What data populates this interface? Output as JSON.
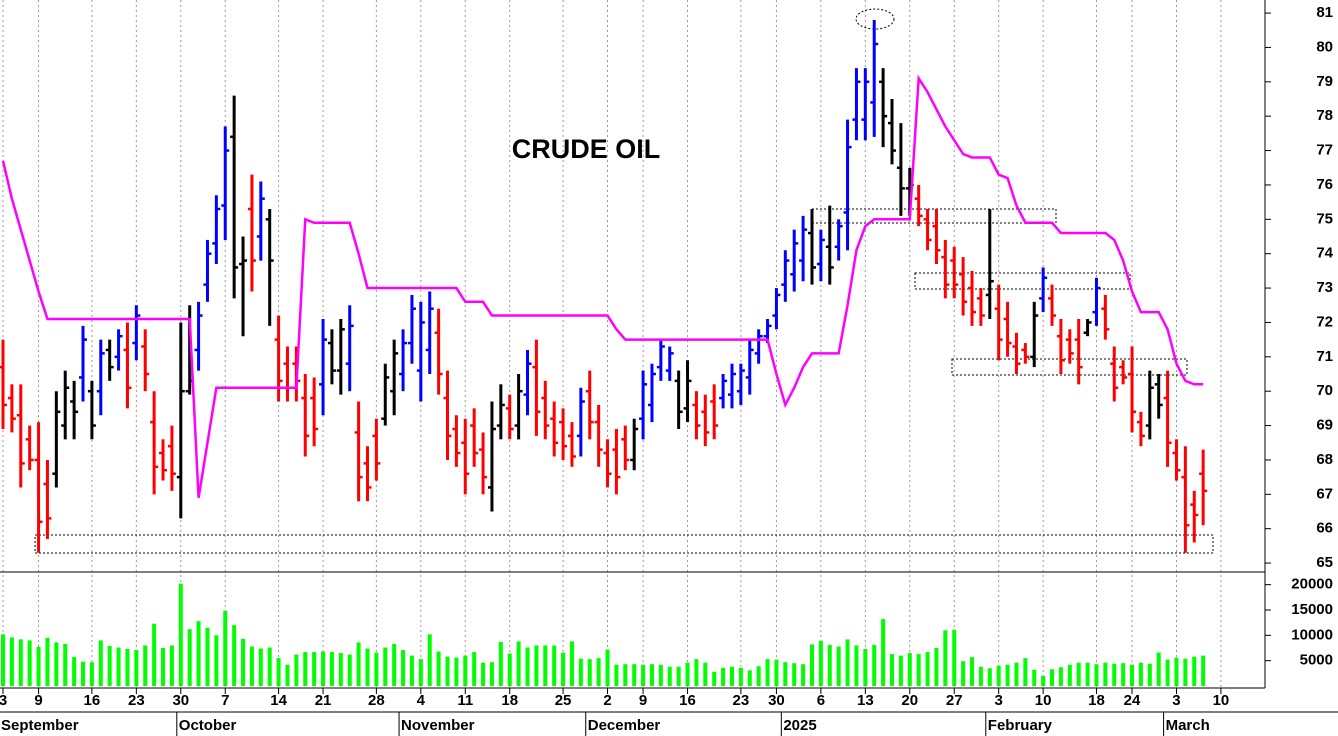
{
  "chart_data": {
    "type": "ohlc",
    "annotation": "CRUDE OIL",
    "categories": [
      "3",
      null,
      null,
      null,
      "9",
      null,
      null,
      null,
      null,
      null,
      "16",
      null,
      null,
      null,
      null,
      "23",
      null,
      null,
      null,
      null,
      "30",
      null,
      null,
      null,
      null,
      "7",
      null,
      null,
      null,
      null,
      null,
      "14",
      null,
      null,
      null,
      null,
      "21",
      null,
      null,
      null,
      null,
      null,
      "28",
      null,
      null,
      null,
      null,
      "4",
      null,
      null,
      null,
      null,
      "11",
      null,
      null,
      null,
      null,
      "18",
      null,
      null,
      null,
      null,
      null,
      "25",
      null,
      null,
      null,
      null,
      "2",
      null,
      null,
      null,
      "9",
      null,
      null,
      null,
      null,
      "16",
      null,
      null,
      null,
      null,
      null,
      "23",
      null,
      null,
      null,
      "30",
      null,
      null,
      null,
      null,
      "6",
      null,
      null,
      null,
      null,
      "13",
      null,
      null,
      null,
      null,
      "20",
      null,
      null,
      null,
      null,
      "27",
      null,
      null,
      null,
      null,
      "3",
      null,
      null,
      null,
      null,
      "10",
      null,
      null,
      null,
      null,
      null,
      "18",
      null,
      null,
      null,
      "24",
      null,
      null,
      null,
      null,
      "3",
      null,
      null,
      null,
      null,
      "10"
    ],
    "month_labels": [
      "September",
      null,
      null,
      null,
      null,
      null,
      null,
      null,
      null,
      null,
      null,
      null,
      null,
      null,
      null,
      null,
      null,
      null,
      null,
      null,
      "October",
      null,
      null,
      null,
      null,
      null,
      null,
      null,
      null,
      null,
      null,
      null,
      null,
      null,
      null,
      null,
      null,
      null,
      null,
      null,
      null,
      null,
      null,
      null,
      null,
      "November",
      null,
      null,
      null,
      null,
      null,
      null,
      null,
      null,
      null,
      null,
      null,
      null,
      null,
      null,
      null,
      null,
      null,
      null,
      null,
      null,
      "December",
      null,
      null,
      null,
      null,
      null,
      null,
      null,
      null,
      null,
      null,
      null,
      null,
      null,
      null,
      null,
      null,
      null,
      null,
      null,
      null,
      null,
      "2025",
      null,
      null,
      null,
      null,
      null,
      null,
      null,
      null,
      null,
      null,
      null,
      null,
      null,
      null,
      null,
      null,
      null,
      null,
      null,
      null,
      null,
      null,
      "February",
      null,
      null,
      null,
      null,
      null,
      null,
      null,
      null,
      null,
      null,
      null,
      null,
      null,
      null,
      null,
      null,
      null,
      null,
      null,
      "March",
      null,
      null,
      null,
      null,
      null,
      null
    ],
    "open": [
      70.7,
      69.8,
      69.3,
      68.6,
      68.0,
      67.3,
      67.6,
      69.0,
      69.7,
      70.4,
      70.0,
      70.0,
      71.2,
      71.0,
      71.2,
      71.4,
      71.3,
      69.1,
      68.2,
      68.4,
      67.5,
      70.0,
      71.2,
      73.1,
      74.3,
      75.4,
      77.4,
      73.7,
      75.3,
      74.5,
      75.0,
      71.5,
      70.8,
      70.8,
      69.8,
      69.8,
      70.2,
      71.4,
      70.6,
      70.8,
      68.8,
      67.9,
      68.7,
      69.2,
      70.0,
      70.5,
      71.4,
      70.6,
      71.2,
      71.7,
      69.8,
      68.9,
      68.5,
      69.0,
      68.3,
      67.2,
      69.0,
      69.5,
      69.0,
      69.9,
      70.7,
      69.8,
      69.2,
      69.1,
      68.7,
      68.7,
      70.0,
      69.1,
      68.2,
      68.3,
      68.6,
      68.0,
      69.2,
      69.6,
      70.7,
      70.6,
      70.3,
      69.5,
      69.6,
      69.4,
      69.7,
      69.8,
      69.9,
      70.0,
      70.4,
      71.1,
      71.6,
      72.2,
      73.1,
      73.4,
      73.8,
      74.6,
      73.7,
      74.2,
      74.2,
      75.2,
      77.9,
      77.9,
      78.4,
      79.0,
      77.8,
      76.5,
      75.9,
      75.6,
      75.0,
      74.8,
      73.9,
      73.8,
      73.4,
      73.0,
      72.7,
      72.8,
      72.4,
      72.1,
      71.3,
      71.2,
      71.0,
      72.7,
      72.7,
      71.6,
      71.5,
      71.5,
      71.7,
      72.3,
      72.4,
      70.8,
      70.7,
      70.5,
      69.1,
      69.0,
      70.2,
      69.8,
      68.2,
      67.5,
      66.7,
      67.6,
      null,
      null
    ],
    "high": [
      71.5,
      70.2,
      70.2,
      69.0,
      69.1,
      68.0,
      70.0,
      70.6,
      70.3,
      71.9,
      70.3,
      71.5,
      71.5,
      71.8,
      72.0,
      72.5,
      71.8,
      70.0,
      68.6,
      69.0,
      72.0,
      72.5,
      72.6,
      74.4,
      75.7,
      77.7,
      78.6,
      74.5,
      76.3,
      76.1,
      75.3,
      72.2,
      71.3,
      71.3,
      70.5,
      70.4,
      72.1,
      71.8,
      72.1,
      72.5,
      69.7,
      68.4,
      69.2,
      70.8,
      71.5,
      71.8,
      72.8,
      72.6,
      72.9,
      72.4,
      70.6,
      69.3,
      69.2,
      69.5,
      68.8,
      69.7,
      70.2,
      69.9,
      70.5,
      71.2,
      71.5,
      70.3,
      69.7,
      69.5,
      69.1,
      70.1,
      70.6,
      69.6,
      68.6,
      68.9,
      69.0,
      69.2,
      70.6,
      70.8,
      71.5,
      71.3,
      70.6,
      70.9,
      70.0,
      69.9,
      70.2,
      70.5,
      70.8,
      70.8,
      71.5,
      71.8,
      72.1,
      73.0,
      74.1,
      74.7,
      75.1,
      75.3,
      74.7,
      75.4,
      75.0,
      77.9,
      79.4,
      79.4,
      80.8,
      79.4,
      78.5,
      77.8,
      76.5,
      76.0,
      75.3,
      75.3,
      74.4,
      74.2,
      73.9,
      73.5,
      73.0,
      75.3,
      73.1,
      72.6,
      71.7,
      71.4,
      72.6,
      73.6,
      73.1,
      72.1,
      71.8,
      72.1,
      72.1,
      73.3,
      72.8,
      71.3,
      70.9,
      71.3,
      69.4,
      70.6,
      70.5,
      70.6,
      68.6,
      68.4,
      67.1,
      68.3,
      null,
      null
    ],
    "low": [
      68.9,
      68.8,
      67.2,
      67.7,
      65.3,
      65.7,
      67.2,
      68.6,
      68.6,
      69.7,
      68.6,
      69.3,
      70.3,
      70.6,
      69.5,
      70.9,
      70.0,
      67.0,
      67.4,
      67.1,
      66.3,
      69.9,
      70.6,
      72.6,
      73.7,
      74.4,
      72.7,
      71.6,
      72.9,
      73.8,
      71.9,
      69.7,
      69.7,
      69.7,
      68.1,
      68.4,
      69.3,
      70.2,
      69.9,
      70.0,
      66.8,
      66.8,
      67.4,
      69.0,
      69.3,
      70.0,
      70.8,
      69.7,
      70.5,
      69.9,
      68.0,
      67.8,
      67.0,
      67.8,
      67.0,
      66.5,
      68.6,
      68.6,
      68.6,
      69.3,
      68.7,
      68.6,
      68.1,
      68.0,
      67.8,
      68.1,
      68.6,
      67.8,
      67.2,
      67.0,
      67.7,
      67.7,
      68.6,
      69.1,
      70.3,
      70.3,
      68.9,
      69.1,
      68.6,
      68.4,
      68.6,
      69.5,
      69.5,
      69.6,
      69.9,
      70.8,
      71.4,
      71.8,
      72.6,
      72.9,
      73.2,
      73.1,
      73.2,
      73.1,
      73.8,
      74.1,
      77.3,
      77.3,
      77.4,
      77.1,
      76.6,
      75.1,
      75.1,
      74.8,
      74.1,
      73.7,
      72.7,
      72.7,
      72.2,
      71.9,
      71.9,
      72.1,
      70.9,
      71.0,
      70.5,
      70.8,
      70.7,
      72.3,
      71.9,
      70.5,
      70.8,
      70.2,
      71.6,
      71.9,
      71.5,
      69.7,
      70.2,
      68.8,
      68.4,
      68.6,
      69.2,
      67.8,
      67.4,
      65.3,
      65.6,
      66.1,
      null,
      null
    ],
    "close": [
      69.6,
      69.2,
      67.9,
      68.0,
      66.2,
      66.3,
      69.4,
      70.1,
      69.4,
      71.5,
      69.0,
      71.1,
      70.7,
      71.6,
      70.1,
      72.2,
      70.5,
      67.8,
      67.7,
      67.6,
      70.0,
      70.3,
      72.2,
      74.0,
      75.3,
      77.0,
      73.6,
      73.8,
      73.8,
      75.6,
      73.8,
      70.3,
      70.1,
      70.3,
      68.7,
      68.9,
      71.5,
      70.6,
      71.8,
      71.9,
      67.5,
      67.2,
      67.9,
      70.4,
      71.1,
      71.4,
      72.4,
      72.0,
      72.4,
      70.5,
      68.7,
      68.2,
      67.6,
      68.2,
      67.5,
      68.9,
      69.6,
      68.9,
      70.0,
      70.8,
      69.4,
      69.0,
      68.5,
      68.4,
      68.1,
      69.7,
      69.1,
      68.3,
      67.6,
      67.5,
      68.0,
      68.9,
      70.2,
      70.5,
      71.3,
      71.1,
      69.4,
      70.3,
      69.0,
      68.8,
      69.0,
      70.3,
      70.5,
      70.6,
      71.2,
      71.6,
      71.9,
      72.8,
      73.8,
      74.3,
      74.7,
      73.6,
      74.4,
      73.6,
      74.8,
      77.1,
      79.0,
      79.0,
      80.1,
      78.0,
      77.0,
      75.9,
      76.0,
      75.1,
      74.4,
      74.1,
      73.1,
      73.1,
      72.6,
      72.3,
      72.2,
      73.2,
      71.5,
      71.4,
      70.8,
      71.0,
      72.2,
      73.3,
      72.2,
      70.9,
      71.1,
      70.7,
      72.0,
      73.0,
      71.8,
      70.1,
      70.4,
      69.4,
      68.7,
      70.1,
      69.6,
      68.5,
      67.7,
      66.1,
      66.4,
      67.1,
      null,
      null
    ],
    "bar_colors": [
      "red",
      "red",
      "red",
      "red",
      "red",
      "red",
      "black",
      "black",
      "black",
      "blue",
      "black",
      "blue",
      "black",
      "blue",
      "red",
      "blue",
      "red",
      "red",
      "red",
      "red",
      "black",
      "black",
      "blue",
      "blue",
      "blue",
      "blue",
      "black",
      "black",
      "red",
      "blue",
      "black",
      "red",
      "red",
      "red",
      "red",
      "red",
      "blue",
      "black",
      "black",
      "blue",
      "red",
      "red",
      "red",
      "black",
      "black",
      "blue",
      "blue",
      "blue",
      "blue",
      "red",
      "red",
      "red",
      "red",
      "red",
      "red",
      "black",
      "black",
      "red",
      "black",
      "blue",
      "red",
      "red",
      "red",
      "red",
      "red",
      "blue",
      "red",
      "red",
      "red",
      "red",
      "red",
      "black",
      "blue",
      "blue",
      "blue",
      "blue",
      "black",
      "black",
      "red",
      "red",
      "red",
      "blue",
      "blue",
      "blue",
      "blue",
      "blue",
      "blue",
      "blue",
      "blue",
      "blue",
      "blue",
      "black",
      "blue",
      "black",
      "blue",
      "blue",
      "blue",
      "blue",
      "blue",
      "black",
      "black",
      "black",
      "black",
      "red",
      "red",
      "red",
      "red",
      "red",
      "red",
      "red",
      "red",
      "black",
      "red",
      "red",
      "red",
      "red",
      "black",
      "blue",
      "red",
      "red",
      "red",
      "red",
      "black",
      "blue",
      "red",
      "red",
      "red",
      "red",
      "red",
      "black",
      "black",
      "red",
      "red",
      "red",
      "red",
      "red",
      null,
      null
    ],
    "stop_line": {
      "color": "#ff00ff",
      "values": [
        76.7,
        75.6,
        74.7,
        73.8,
        72.9,
        72.1,
        72.1,
        72.1,
        72.1,
        72.1,
        72.1,
        72.1,
        72.1,
        72.1,
        72.1,
        72.1,
        72.1,
        72.1,
        72.1,
        72.1,
        72.1,
        72.1,
        66.9,
        68.5,
        70.1,
        70.1,
        70.1,
        70.1,
        70.1,
        70.1,
        70.1,
        70.1,
        70.1,
        70.1,
        75.0,
        74.9,
        74.9,
        74.9,
        74.9,
        74.9,
        74.0,
        73.0,
        73.0,
        73.0,
        73.0,
        73.0,
        73.0,
        73.0,
        73.0,
        73.0,
        73.0,
        73.0,
        72.6,
        72.6,
        72.6,
        72.2,
        72.2,
        72.2,
        72.2,
        72.2,
        72.2,
        72.2,
        72.2,
        72.2,
        72.2,
        72.2,
        72.2,
        72.2,
        72.2,
        71.8,
        71.5,
        71.5,
        71.5,
        71.5,
        71.5,
        71.5,
        71.5,
        71.5,
        71.5,
        71.5,
        71.5,
        71.5,
        71.5,
        71.5,
        71.5,
        71.5,
        71.5,
        70.5,
        69.6,
        70.1,
        70.7,
        71.1,
        71.1,
        71.1,
        71.1,
        72.5,
        74.1,
        74.8,
        75.0,
        75.0,
        75.0,
        75.0,
        75.0,
        79.1,
        78.7,
        78.2,
        77.7,
        77.3,
        76.9,
        76.8,
        76.8,
        76.8,
        76.3,
        76.2,
        75.4,
        74.9,
        74.9,
        74.9,
        74.9,
        74.6,
        74.6,
        74.6,
        74.6,
        74.6,
        74.6,
        74.4,
        73.8,
        72.9,
        72.3,
        72.3,
        72.3,
        71.8,
        70.8,
        70.3,
        70.2,
        70.2,
        null,
        null
      ]
    },
    "volume": {
      "color": "#00ff00",
      "ylim": [
        0,
        22500
      ],
      "yticks": [
        5000,
        10000,
        15000,
        20000
      ],
      "values": [
        10200,
        9600,
        9200,
        9000,
        7700,
        9500,
        8600,
        8300,
        5700,
        4800,
        4700,
        9000,
        7900,
        7600,
        7300,
        7100,
        8000,
        12300,
        7500,
        8000,
        20200,
        11200,
        12800,
        11500,
        10000,
        14800,
        12000,
        9300,
        7800,
        7400,
        7600,
        5500,
        4200,
        6200,
        6700,
        6700,
        6800,
        6700,
        6500,
        6200,
        8600,
        7400,
        6600,
        7600,
        8300,
        7100,
        6000,
        5300,
        10200,
        6800,
        5800,
        5600,
        6000,
        6700,
        4600,
        4700,
        8700,
        6400,
        8800,
        7600,
        8000,
        8000,
        8000,
        6600,
        8800,
        5400,
        5300,
        5500,
        7200,
        4200,
        4300,
        4300,
        4200,
        4300,
        4200,
        3800,
        3800,
        4600,
        5300,
        4600,
        2800,
        3600,
        3800,
        3600,
        3100,
        3900,
        5300,
        5200,
        4700,
        4500,
        4300,
        8200,
        8900,
        8100,
        7800,
        9200,
        8000,
        7300,
        8100,
        13200,
        6300,
        6000,
        6500,
        6300,
        6700,
        7500,
        11000,
        11100,
        4900,
        5700,
        3800,
        3500,
        4000,
        4200,
        4600,
        5500,
        3200,
        2000,
        3300,
        3700,
        4200,
        4600,
        4600,
        4300,
        4600,
        4400,
        4500,
        4200,
        4600,
        4400,
        6600,
        5200,
        5600,
        5400,
        5800,
        6000,
        null,
        null
      ]
    },
    "ylim": [
      64.74,
      81.38
    ],
    "yticks": [
      65,
      66,
      67,
      68,
      69,
      70,
      71,
      72,
      73,
      74,
      75,
      76,
      77,
      78,
      79,
      80,
      81
    ],
    "grid": "x"
  }
}
